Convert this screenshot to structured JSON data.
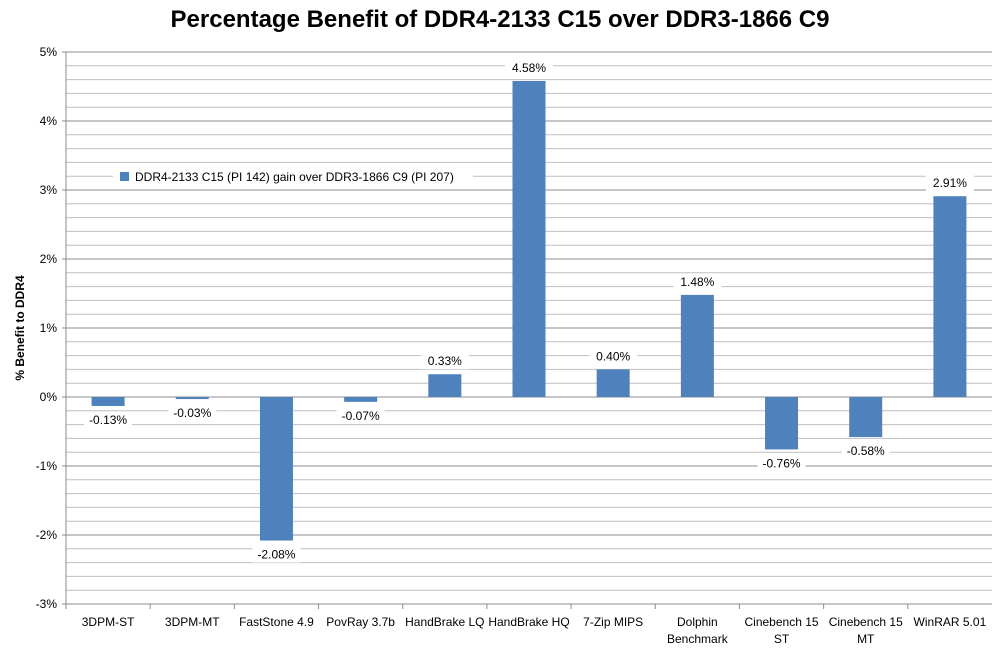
{
  "chart_data": {
    "type": "bar",
    "title": "Percentage Benefit of DDR4-2133 C15 over DDR3-1866 C9",
    "ylabel": "% Benefit to DDR4",
    "xlabel": "",
    "ylim": [
      -3,
      5
    ],
    "y_ticks": [
      "-3%",
      "-2%",
      "-1%",
      "0%",
      "1%",
      "2%",
      "3%",
      "4%",
      "5%"
    ],
    "grid": true,
    "legend_position": "top-left",
    "categories": [
      [
        "3DPM-ST"
      ],
      [
        "3DPM-MT"
      ],
      [
        "FastStone 4.9"
      ],
      [
        "PovRay 3.7b"
      ],
      [
        "HandBrake LQ"
      ],
      [
        "HandBrake HQ"
      ],
      [
        "7-Zip MIPS"
      ],
      [
        "Dolphin",
        "Benchmark"
      ],
      [
        "Cinebench 15",
        "ST"
      ],
      [
        "Cinebench 15",
        "MT"
      ],
      [
        "WinRAR 5.01"
      ]
    ],
    "series": [
      {
        "name": "DDR4-2133 C15 (PI 142) gain over DDR3-1866 C9 (PI 207)",
        "color": "#4f81bd",
        "values": [
          -0.13,
          -0.03,
          -2.08,
          -0.07,
          0.33,
          4.58,
          0.4,
          1.48,
          -0.76,
          -0.58,
          2.91
        ],
        "labels": [
          "-0.13%",
          "-0.03%",
          "-2.08%",
          "-0.07%",
          "0.33%",
          "4.58%",
          "0.40%",
          "1.48%",
          "-0.76%",
          "-0.58%",
          "2.91%"
        ]
      }
    ]
  }
}
